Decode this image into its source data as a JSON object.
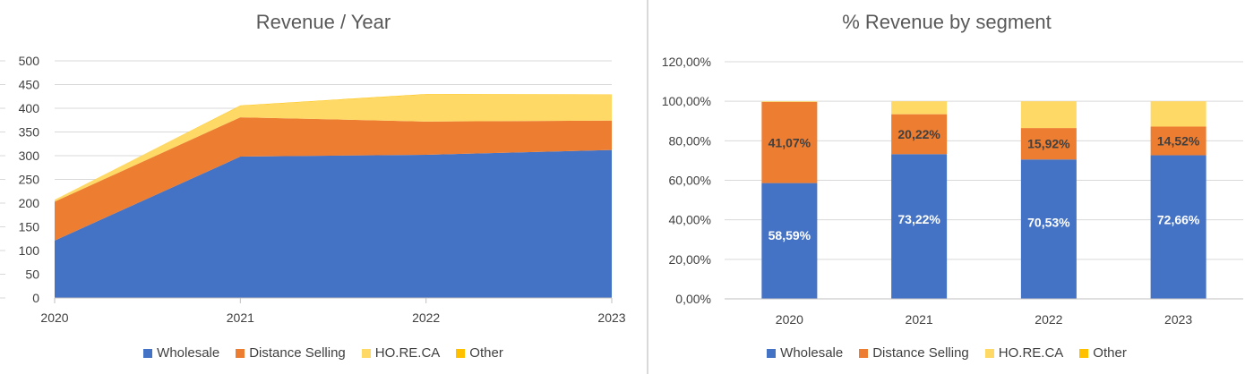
{
  "chart_data": [
    {
      "type": "area",
      "title": "Revenue / Year",
      "categories": [
        "2020",
        "2021",
        "2022",
        "2023"
      ],
      "ylim": [
        0,
        500
      ],
      "yticks": [
        "0",
        "50",
        "100",
        "150",
        "200",
        "250",
        "300",
        "350",
        "400",
        "450",
        "500"
      ],
      "series": [
        {
          "name": "Wholesale",
          "color": "#4472C4",
          "values": [
            121,
            298,
            302,
            312
          ]
        },
        {
          "name": "Distance Selling",
          "color": "#ED7D31",
          "values": [
            82,
            83,
            70,
            62
          ]
        },
        {
          "name": "HO.RE.CA",
          "color": "#FFD966",
          "values": [
            4,
            24,
            57,
            54
          ]
        },
        {
          "name": "Other",
          "color": "#FFC000",
          "values": [
            0,
            1,
            1,
            1
          ]
        }
      ],
      "legend": [
        "Wholesale",
        "Distance Selling",
        "HO.RE.CA",
        "Other"
      ]
    },
    {
      "type": "bar",
      "stacked": true,
      "title": "% Revenue by segment",
      "categories": [
        "2020",
        "2021",
        "2022",
        "2023"
      ],
      "ylim": [
        0,
        120
      ],
      "yticks": [
        "0,00%",
        "20,00%",
        "40,00%",
        "60,00%",
        "80,00%",
        "100,00%",
        "120,00%"
      ],
      "series": [
        {
          "name": "Wholesale",
          "color": "#4472C4",
          "values": [
            58.59,
            73.22,
            70.53,
            72.66
          ],
          "labels": [
            "58,59%",
            "73,22%",
            "70,53%",
            "72,66%"
          ]
        },
        {
          "name": "Distance Selling",
          "color": "#ED7D31",
          "values": [
            41.07,
            20.22,
            15.92,
            14.52
          ],
          "labels": [
            "41,07%",
            "20,22%",
            "15,92%",
            "14,52%"
          ]
        },
        {
          "name": "HO.RE.CA",
          "color": "#FFD966",
          "values": [
            0.34,
            6.56,
            13.55,
            12.82
          ]
        },
        {
          "name": "Other",
          "color": "#FFC000",
          "values": [
            0,
            0,
            0,
            0
          ]
        }
      ],
      "legend": [
        "Wholesale",
        "Distance Selling",
        "HO.RE.CA",
        "Other"
      ]
    }
  ]
}
